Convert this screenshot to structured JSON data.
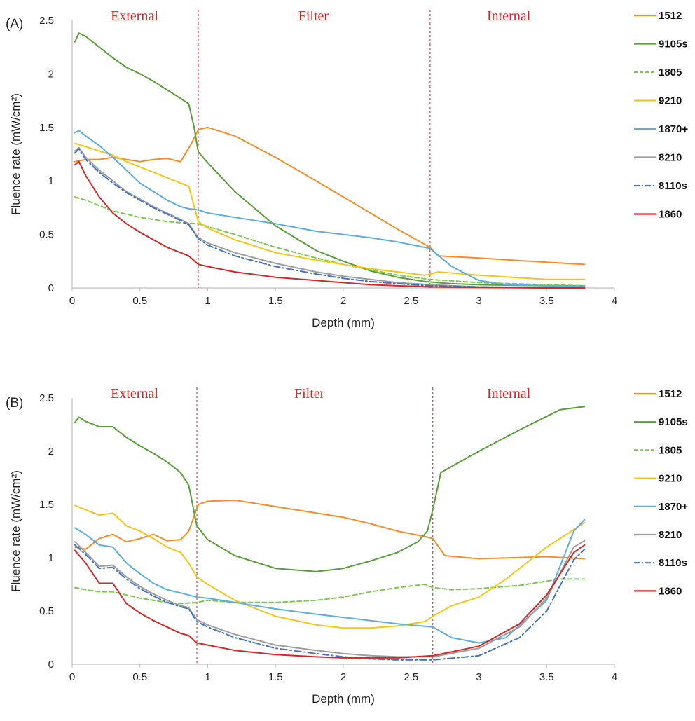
{
  "chart_data": [
    {
      "panel_label": "(A)",
      "type": "line",
      "xlabel": "Depth (mm)",
      "ylabel": "Fluence rate  (mW/cm²)",
      "xlim": [
        0,
        4
      ],
      "ylim": [
        0,
        2.5
      ],
      "xticks": [
        "0",
        "0.5",
        "1",
        "1.5",
        "2",
        "2.5",
        "3",
        "3.5",
        "4"
      ],
      "yticks": [
        "0",
        "0.5",
        "1",
        "1.5",
        "2",
        "2.5"
      ],
      "grid": false,
      "legend_position": "right",
      "regions": [
        {
          "label": "External",
          "x_center": 0.46
        },
        {
          "label": "Filter",
          "x_center": 1.78
        },
        {
          "label": "Internal",
          "x_center": 3.22
        }
      ],
      "boundaries": [
        0.93,
        2.64
      ],
      "series": [
        {
          "name": "1512",
          "color": "#F28E2B",
          "dash": "solid",
          "x": [
            0.02,
            0.1,
            0.2,
            0.3,
            0.4,
            0.5,
            0.6,
            0.7,
            0.8,
            0.88,
            0.93,
            1.0,
            1.2,
            1.5,
            1.8,
            2.0,
            2.2,
            2.4,
            2.64,
            2.7,
            3.0,
            3.5,
            3.78
          ],
          "values": [
            1.18,
            1.2,
            1.2,
            1.22,
            1.2,
            1.18,
            1.2,
            1.21,
            1.18,
            1.35,
            1.48,
            1.5,
            1.42,
            1.22,
            1.0,
            0.85,
            0.7,
            0.55,
            0.38,
            0.3,
            0.28,
            0.24,
            0.22
          ]
        },
        {
          "name": "9105s",
          "color": "#5A9E3A",
          "dash": "solid",
          "x": [
            0.02,
            0.05,
            0.1,
            0.2,
            0.3,
            0.4,
            0.5,
            0.6,
            0.7,
            0.8,
            0.86,
            0.9,
            0.93,
            1.0,
            1.2,
            1.5,
            1.8,
            2.0,
            2.2,
            2.4,
            2.6,
            2.8,
            3.0,
            3.5,
            3.78
          ],
          "values": [
            2.3,
            2.38,
            2.35,
            2.25,
            2.15,
            2.06,
            2.0,
            1.93,
            1.85,
            1.77,
            1.72,
            1.5,
            1.27,
            1.17,
            0.9,
            0.58,
            0.35,
            0.25,
            0.16,
            0.1,
            0.06,
            0.04,
            0.03,
            0.02,
            0.02
          ]
        },
        {
          "name": "1805",
          "color": "#7EC850",
          "dash": "dashed",
          "x": [
            0.02,
            0.1,
            0.2,
            0.3,
            0.4,
            0.5,
            0.6,
            0.7,
            0.8,
            0.93,
            1.2,
            1.5,
            1.8,
            2.0,
            2.2,
            2.4,
            2.64,
            3.0,
            3.5,
            3.78
          ],
          "values": [
            0.85,
            0.82,
            0.77,
            0.72,
            0.69,
            0.66,
            0.64,
            0.62,
            0.61,
            0.6,
            0.5,
            0.38,
            0.28,
            0.22,
            0.17,
            0.12,
            0.08,
            0.05,
            0.03,
            0.02
          ]
        },
        {
          "name": "9210",
          "color": "#F5C518",
          "dash": "solid",
          "x": [
            0.02,
            0.1,
            0.2,
            0.3,
            0.4,
            0.5,
            0.6,
            0.7,
            0.8,
            0.86,
            0.93,
            1.0,
            1.2,
            1.5,
            1.8,
            2.0,
            2.2,
            2.4,
            2.6,
            2.64,
            2.7,
            3.0,
            3.5,
            3.78
          ],
          "values": [
            1.35,
            1.32,
            1.28,
            1.24,
            1.18,
            1.13,
            1.08,
            1.03,
            0.98,
            0.95,
            0.62,
            0.56,
            0.45,
            0.33,
            0.26,
            0.22,
            0.18,
            0.15,
            0.12,
            0.13,
            0.15,
            0.12,
            0.08,
            0.08
          ]
        },
        {
          "name": "1870+",
          "color": "#5DADE2",
          "dash": "solid",
          "x": [
            0.02,
            0.05,
            0.1,
            0.2,
            0.3,
            0.4,
            0.5,
            0.6,
            0.7,
            0.8,
            0.86,
            0.93,
            1.0,
            1.2,
            1.5,
            1.8,
            2.0,
            2.2,
            2.4,
            2.64,
            2.8,
            3.0,
            3.2,
            3.5,
            3.78
          ],
          "values": [
            1.45,
            1.47,
            1.42,
            1.33,
            1.22,
            1.1,
            0.98,
            0.9,
            0.82,
            0.76,
            0.74,
            0.73,
            0.7,
            0.66,
            0.6,
            0.53,
            0.5,
            0.47,
            0.43,
            0.37,
            0.2,
            0.07,
            0.03,
            0.02,
            0.01
          ]
        },
        {
          "name": "8210",
          "color": "#9E9E9E",
          "dash": "solid",
          "x": [
            0.02,
            0.05,
            0.1,
            0.2,
            0.3,
            0.4,
            0.5,
            0.6,
            0.7,
            0.8,
            0.86,
            0.93,
            1.0,
            1.2,
            1.5,
            1.8,
            2.0,
            2.2,
            2.4,
            2.64,
            3.0,
            3.5,
            3.78
          ],
          "values": [
            1.28,
            1.31,
            1.22,
            1.1,
            1.0,
            0.9,
            0.83,
            0.76,
            0.7,
            0.64,
            0.6,
            0.47,
            0.42,
            0.33,
            0.23,
            0.15,
            0.11,
            0.08,
            0.05,
            0.03,
            0.01,
            0.005,
            0.0
          ]
        },
        {
          "name": "8110s",
          "color": "#4472C4",
          "dash": "dashdot",
          "x": [
            0.02,
            0.05,
            0.1,
            0.2,
            0.3,
            0.4,
            0.5,
            0.6,
            0.7,
            0.8,
            0.86,
            0.93,
            1.0,
            1.2,
            1.5,
            1.8,
            2.0,
            2.2,
            2.4,
            2.64,
            3.0,
            3.5,
            3.78
          ],
          "values": [
            1.26,
            1.3,
            1.2,
            1.08,
            0.98,
            0.89,
            0.82,
            0.75,
            0.69,
            0.63,
            0.59,
            0.46,
            0.4,
            0.3,
            0.2,
            0.13,
            0.09,
            0.06,
            0.04,
            0.02,
            0.01,
            0.0,
            0.0
          ]
        },
        {
          "name": "1860",
          "color": "#D62728",
          "dash": "solid",
          "x": [
            0.02,
            0.05,
            0.1,
            0.2,
            0.3,
            0.4,
            0.5,
            0.6,
            0.7,
            0.8,
            0.86,
            0.93,
            1.0,
            1.2,
            1.5,
            1.8,
            2.0,
            2.2,
            2.4,
            2.64,
            3.0,
            3.5,
            3.78
          ],
          "values": [
            1.15,
            1.18,
            1.05,
            0.85,
            0.7,
            0.6,
            0.52,
            0.45,
            0.38,
            0.33,
            0.3,
            0.22,
            0.2,
            0.15,
            0.1,
            0.07,
            0.05,
            0.03,
            0.02,
            0.01,
            0.005,
            0.0,
            0.0
          ]
        }
      ]
    },
    {
      "panel_label": "(B)",
      "type": "line",
      "xlabel": "Depth (mm)",
      "ylabel": "Fluence rate  (mW/cm²)",
      "xlim": [
        0,
        4
      ],
      "ylim": [
        0,
        2.5
      ],
      "xticks": [
        "0",
        "0.5",
        "1",
        "1.5",
        "2",
        "2.5",
        "3",
        "3.5",
        "4"
      ],
      "yticks": [
        "0",
        "0.5",
        "1",
        "1.5",
        "2",
        "2.5"
      ],
      "grid": false,
      "legend_position": "right",
      "regions": [
        {
          "label": "External",
          "x_center": 0.46
        },
        {
          "label": "Filter",
          "x_center": 1.75
        },
        {
          "label": "Internal",
          "x_center": 3.22
        }
      ],
      "boundaries": [
        0.92,
        2.66
      ],
      "series": [
        {
          "name": "1512",
          "color": "#F28E2B",
          "dash": "solid",
          "x": [
            0.02,
            0.1,
            0.2,
            0.25,
            0.3,
            0.4,
            0.5,
            0.6,
            0.7,
            0.8,
            0.86,
            0.93,
            1.0,
            1.2,
            1.5,
            1.8,
            2.0,
            2.2,
            2.4,
            2.6,
            2.66,
            2.75,
            3.0,
            3.5,
            3.78
          ],
          "values": [
            1.1,
            1.08,
            1.18,
            1.2,
            1.22,
            1.15,
            1.18,
            1.22,
            1.16,
            1.17,
            1.25,
            1.5,
            1.53,
            1.54,
            1.48,
            1.42,
            1.38,
            1.32,
            1.25,
            1.2,
            1.18,
            1.02,
            0.99,
            1.01,
            0.99
          ]
        },
        {
          "name": "9105s",
          "color": "#5A9E3A",
          "dash": "solid",
          "x": [
            0.02,
            0.05,
            0.1,
            0.2,
            0.3,
            0.4,
            0.5,
            0.6,
            0.7,
            0.8,
            0.86,
            0.92,
            1.0,
            1.2,
            1.5,
            1.8,
            2.0,
            2.2,
            2.4,
            2.55,
            2.62,
            2.66,
            2.72,
            3.0,
            3.3,
            3.6,
            3.78
          ],
          "values": [
            2.27,
            2.32,
            2.28,
            2.23,
            2.23,
            2.13,
            2.05,
            1.98,
            1.9,
            1.8,
            1.68,
            1.3,
            1.17,
            1.02,
            0.9,
            0.87,
            0.9,
            0.97,
            1.05,
            1.15,
            1.25,
            1.45,
            1.8,
            2.0,
            2.2,
            2.39,
            2.42
          ]
        },
        {
          "name": "1805",
          "color": "#7EC850",
          "dash": "dashed",
          "x": [
            0.02,
            0.1,
            0.2,
            0.3,
            0.4,
            0.5,
            0.6,
            0.7,
            0.8,
            0.92,
            1.0,
            1.2,
            1.5,
            1.8,
            2.0,
            2.2,
            2.4,
            2.6,
            2.66,
            2.8,
            3.0,
            3.3,
            3.6,
            3.78
          ],
          "values": [
            0.72,
            0.7,
            0.68,
            0.68,
            0.65,
            0.62,
            0.6,
            0.58,
            0.57,
            0.58,
            0.6,
            0.58,
            0.58,
            0.6,
            0.63,
            0.68,
            0.72,
            0.75,
            0.72,
            0.7,
            0.71,
            0.74,
            0.8,
            0.8
          ]
        },
        {
          "name": "9210",
          "color": "#F5C518",
          "dash": "solid",
          "x": [
            0.02,
            0.1,
            0.2,
            0.3,
            0.4,
            0.5,
            0.6,
            0.7,
            0.8,
            0.86,
            0.92,
            1.0,
            1.2,
            1.5,
            1.8,
            2.0,
            2.2,
            2.4,
            2.6,
            2.66,
            2.8,
            3.0,
            3.2,
            3.5,
            3.78
          ],
          "values": [
            1.49,
            1.45,
            1.4,
            1.42,
            1.3,
            1.25,
            1.18,
            1.1,
            1.05,
            0.95,
            0.82,
            0.75,
            0.6,
            0.45,
            0.37,
            0.34,
            0.34,
            0.36,
            0.4,
            0.45,
            0.55,
            0.63,
            0.8,
            1.1,
            1.33
          ]
        },
        {
          "name": "1870+",
          "color": "#5DADE2",
          "dash": "solid",
          "x": [
            0.02,
            0.1,
            0.2,
            0.3,
            0.4,
            0.5,
            0.6,
            0.7,
            0.8,
            0.92,
            1.0,
            1.2,
            1.5,
            1.8,
            2.0,
            2.2,
            2.4,
            2.66,
            2.8,
            3.0,
            3.2,
            3.5,
            3.7,
            3.78
          ],
          "values": [
            1.28,
            1.22,
            1.12,
            1.1,
            0.95,
            0.85,
            0.76,
            0.7,
            0.67,
            0.63,
            0.62,
            0.58,
            0.52,
            0.47,
            0.44,
            0.41,
            0.38,
            0.35,
            0.25,
            0.2,
            0.25,
            0.6,
            1.25,
            1.36
          ]
        },
        {
          "name": "8210",
          "color": "#9E9E9E",
          "dash": "solid",
          "x": [
            0.02,
            0.1,
            0.2,
            0.3,
            0.4,
            0.5,
            0.6,
            0.7,
            0.8,
            0.86,
            0.92,
            1.0,
            1.2,
            1.5,
            1.8,
            2.0,
            2.2,
            2.4,
            2.66,
            3.0,
            3.3,
            3.5,
            3.7,
            3.78
          ],
          "values": [
            1.15,
            1.05,
            0.92,
            0.93,
            0.82,
            0.73,
            0.66,
            0.6,
            0.55,
            0.53,
            0.42,
            0.37,
            0.28,
            0.18,
            0.13,
            0.1,
            0.08,
            0.07,
            0.07,
            0.15,
            0.35,
            0.62,
            1.1,
            1.16
          ]
        },
        {
          "name": "8110s",
          "color": "#4472C4",
          "dash": "dashdot",
          "x": [
            0.02,
            0.1,
            0.2,
            0.3,
            0.4,
            0.5,
            0.6,
            0.7,
            0.8,
            0.86,
            0.92,
            1.0,
            1.2,
            1.5,
            1.8,
            2.0,
            2.2,
            2.4,
            2.66,
            3.0,
            3.3,
            3.5,
            3.7,
            3.78
          ],
          "values": [
            1.12,
            1.03,
            0.9,
            0.91,
            0.8,
            0.71,
            0.64,
            0.58,
            0.54,
            0.52,
            0.4,
            0.35,
            0.25,
            0.15,
            0.1,
            0.07,
            0.05,
            0.04,
            0.04,
            0.08,
            0.25,
            0.5,
            0.98,
            1.08
          ]
        },
        {
          "name": "1860",
          "color": "#D62728",
          "dash": "solid",
          "x": [
            0.02,
            0.1,
            0.2,
            0.3,
            0.4,
            0.5,
            0.6,
            0.7,
            0.8,
            0.86,
            0.92,
            1.0,
            1.2,
            1.5,
            1.8,
            2.0,
            2.2,
            2.4,
            2.66,
            3.0,
            3.3,
            3.5,
            3.7,
            3.78
          ],
          "values": [
            1.07,
            0.95,
            0.76,
            0.76,
            0.57,
            0.48,
            0.41,
            0.35,
            0.29,
            0.27,
            0.2,
            0.18,
            0.13,
            0.09,
            0.07,
            0.06,
            0.06,
            0.06,
            0.08,
            0.17,
            0.38,
            0.65,
            1.05,
            1.12
          ]
        }
      ]
    }
  ],
  "colors": {
    "boundary_line": "#E05050",
    "region_label": "#E02020",
    "axis": "#BFBFBF"
  }
}
